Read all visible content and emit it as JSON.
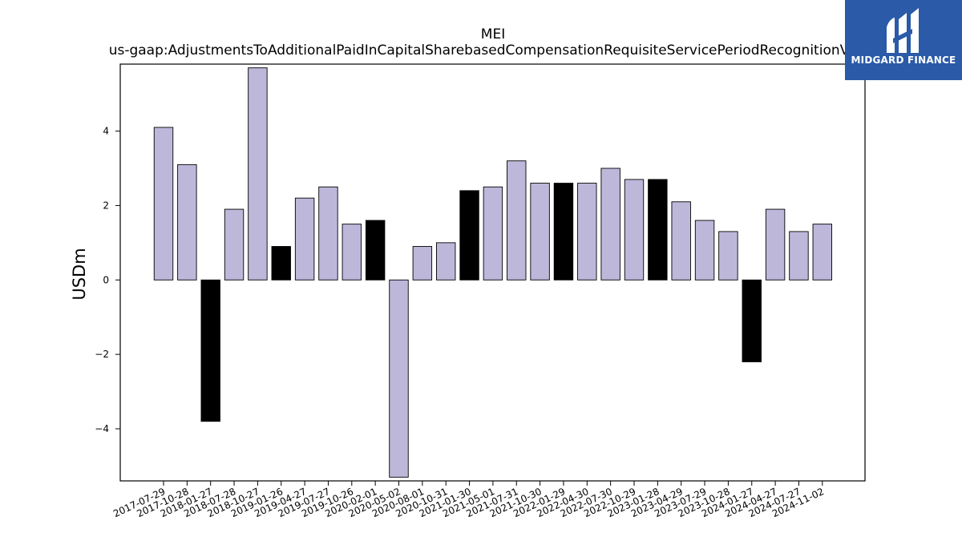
{
  "brand": {
    "name": "MIDGARD FINANCE",
    "bg": "#2a5aa8"
  },
  "chart_data": {
    "type": "bar",
    "title": "MEI",
    "subtitle": "us-gaap:AdjustmentsToAdditionalPaidInCapitalSharebasedCompensationRequisiteServicePeriodRecognitionValue",
    "ylabel": "USDm",
    "xlabel": "",
    "ylim": [
      -5.4,
      5.8
    ],
    "yticks": [
      -4,
      -2,
      0,
      2,
      4
    ],
    "grid": false,
    "legend": "none",
    "colors": {
      "regular": "#bdb8da",
      "highlight": "#000000",
      "edge": "#000000"
    },
    "categories": [
      "2017-07-29",
      "2017-10-28",
      "2018-01-27",
      "2018-07-28",
      "2018-10-27",
      "2019-01-26",
      "2019-04-27",
      "2019-07-27",
      "2019-10-26",
      "2020-02-01",
      "2020-05-02",
      "2020-08-01",
      "2020-10-31",
      "2021-01-30",
      "2021-05-01",
      "2021-07-31",
      "2021-10-30",
      "2022-01-29",
      "2022-04-30",
      "2022-07-30",
      "2022-10-29",
      "2023-01-28",
      "2023-04-29",
      "2023-07-29",
      "2023-10-28",
      "2024-01-27",
      "2024-04-27",
      "2024-07-27",
      "2024-11-02"
    ],
    "values": [
      4.1,
      3.1,
      -3.8,
      1.9,
      5.7,
      0.9,
      2.2,
      2.5,
      1.5,
      1.6,
      -5.3,
      0.9,
      1.0,
      2.4,
      2.5,
      3.2,
      2.6,
      2.6,
      2.6,
      3.0,
      2.7,
      2.7,
      2.1,
      1.6,
      1.3,
      -2.2,
      1.9,
      1.3,
      1.5
    ],
    "highlight": [
      false,
      false,
      true,
      false,
      false,
      true,
      false,
      false,
      false,
      true,
      false,
      false,
      false,
      true,
      false,
      false,
      false,
      true,
      false,
      false,
      false,
      true,
      false,
      false,
      false,
      true,
      false,
      false,
      false
    ]
  }
}
